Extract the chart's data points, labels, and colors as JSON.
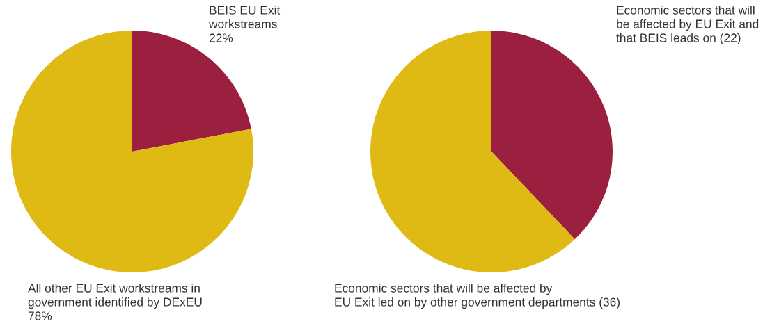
{
  "chart_data": [
    {
      "type": "pie",
      "categories": [
        "BEIS EU Exit\nworkstreams",
        "All other EU Exit workstreams in\ngovernment identified by DExEU"
      ],
      "values": [
        22,
        78
      ],
      "colors": [
        "#9b1f3f",
        "#dfb914"
      ],
      "value_labels": [
        "22%",
        "78%"
      ]
    },
    {
      "type": "pie",
      "categories": [
        "Economic sectors that will\nbe affected by EU Exit and\nthat BEIS leads on (22)",
        "Economic sectors that will be affected by\nEU Exit led on by other government departments (36)"
      ],
      "values": [
        22,
        36
      ],
      "colors": [
        "#9b1f3f",
        "#dfb914"
      ]
    }
  ]
}
